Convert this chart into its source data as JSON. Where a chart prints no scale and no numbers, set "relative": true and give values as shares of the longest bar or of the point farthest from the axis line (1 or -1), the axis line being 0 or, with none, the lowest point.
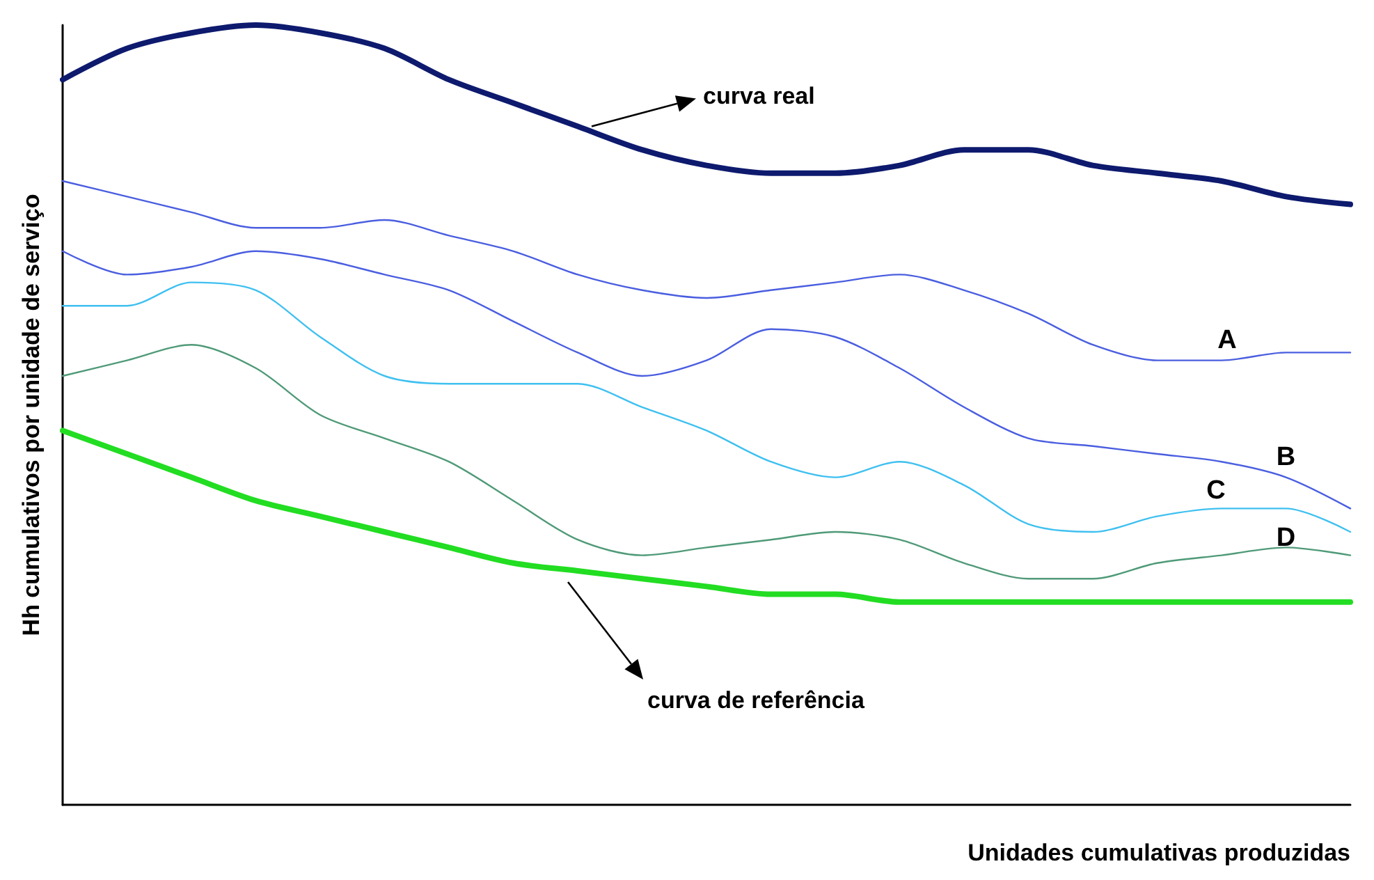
{
  "chart_data": {
    "type": "line",
    "relative": true,
    "xlabel": "Unidades cumulativas produzidas",
    "ylabel": "Hh cumulativos por unidade de serviço",
    "categories": [
      null,
      null,
      null,
      null,
      null,
      null,
      null,
      null,
      null,
      null,
      null,
      null,
      null,
      null,
      null,
      null,
      null,
      null,
      null,
      null,
      null
    ],
    "series": [
      {
        "name": "curva real",
        "color": "#0d1a6e",
        "values": [
          0.93,
          0.97,
          0.99,
          1,
          0.99,
          0.97,
          0.93,
          0.9,
          0.87,
          0.84,
          0.82,
          0.81,
          0.81,
          0.82,
          0.84,
          0.84,
          0.82,
          0.81,
          0.8,
          0.78,
          0.77
        ]
      },
      {
        "name": "A",
        "color": "#4a5ee0",
        "values": [
          0.8,
          0.78,
          0.76,
          0.74,
          0.74,
          0.75,
          0.73,
          0.71,
          0.68,
          0.66,
          0.65,
          0.66,
          0.67,
          0.68,
          0.66,
          0.63,
          0.59,
          0.57,
          0.57,
          0.58,
          0.58
        ]
      },
      {
        "name": "B",
        "color": "#4a5ee0",
        "values": [
          0.71,
          0.68,
          0.69,
          0.71,
          0.7,
          0.68,
          0.66,
          0.62,
          0.58,
          0.55,
          0.57,
          0.61,
          0.6,
          0.56,
          0.51,
          0.47,
          0.46,
          0.45,
          0.44,
          0.42,
          0.38
        ]
      },
      {
        "name": "C",
        "color": "#3fc0f0",
        "values": [
          0.64,
          0.64,
          0.67,
          0.66,
          0.6,
          0.55,
          0.54,
          0.54,
          0.54,
          0.51,
          0.48,
          0.44,
          0.42,
          0.44,
          0.41,
          0.36,
          0.35,
          0.37,
          0.38,
          0.38,
          0.35
        ]
      },
      {
        "name": "D",
        "color": "#4f9a78",
        "values": [
          0.55,
          0.57,
          0.59,
          0.56,
          0.5,
          0.47,
          0.44,
          0.39,
          0.34,
          0.32,
          0.33,
          0.34,
          0.35,
          0.34,
          0.31,
          0.29,
          0.29,
          0.31,
          0.32,
          0.33,
          0.32
        ]
      },
      {
        "name": "curva de referência",
        "color": "#22dd22",
        "values": [
          0.48,
          0.45,
          0.42,
          0.39,
          0.37,
          0.35,
          0.33,
          0.31,
          0.3,
          0.29,
          0.28,
          0.27,
          0.27,
          0.26,
          0.26,
          0.26,
          0.26,
          0.26,
          0.26,
          0.26,
          0.26
        ]
      }
    ],
    "grid": false,
    "legend": false,
    "marker": "none",
    "line_style": "solid"
  }
}
